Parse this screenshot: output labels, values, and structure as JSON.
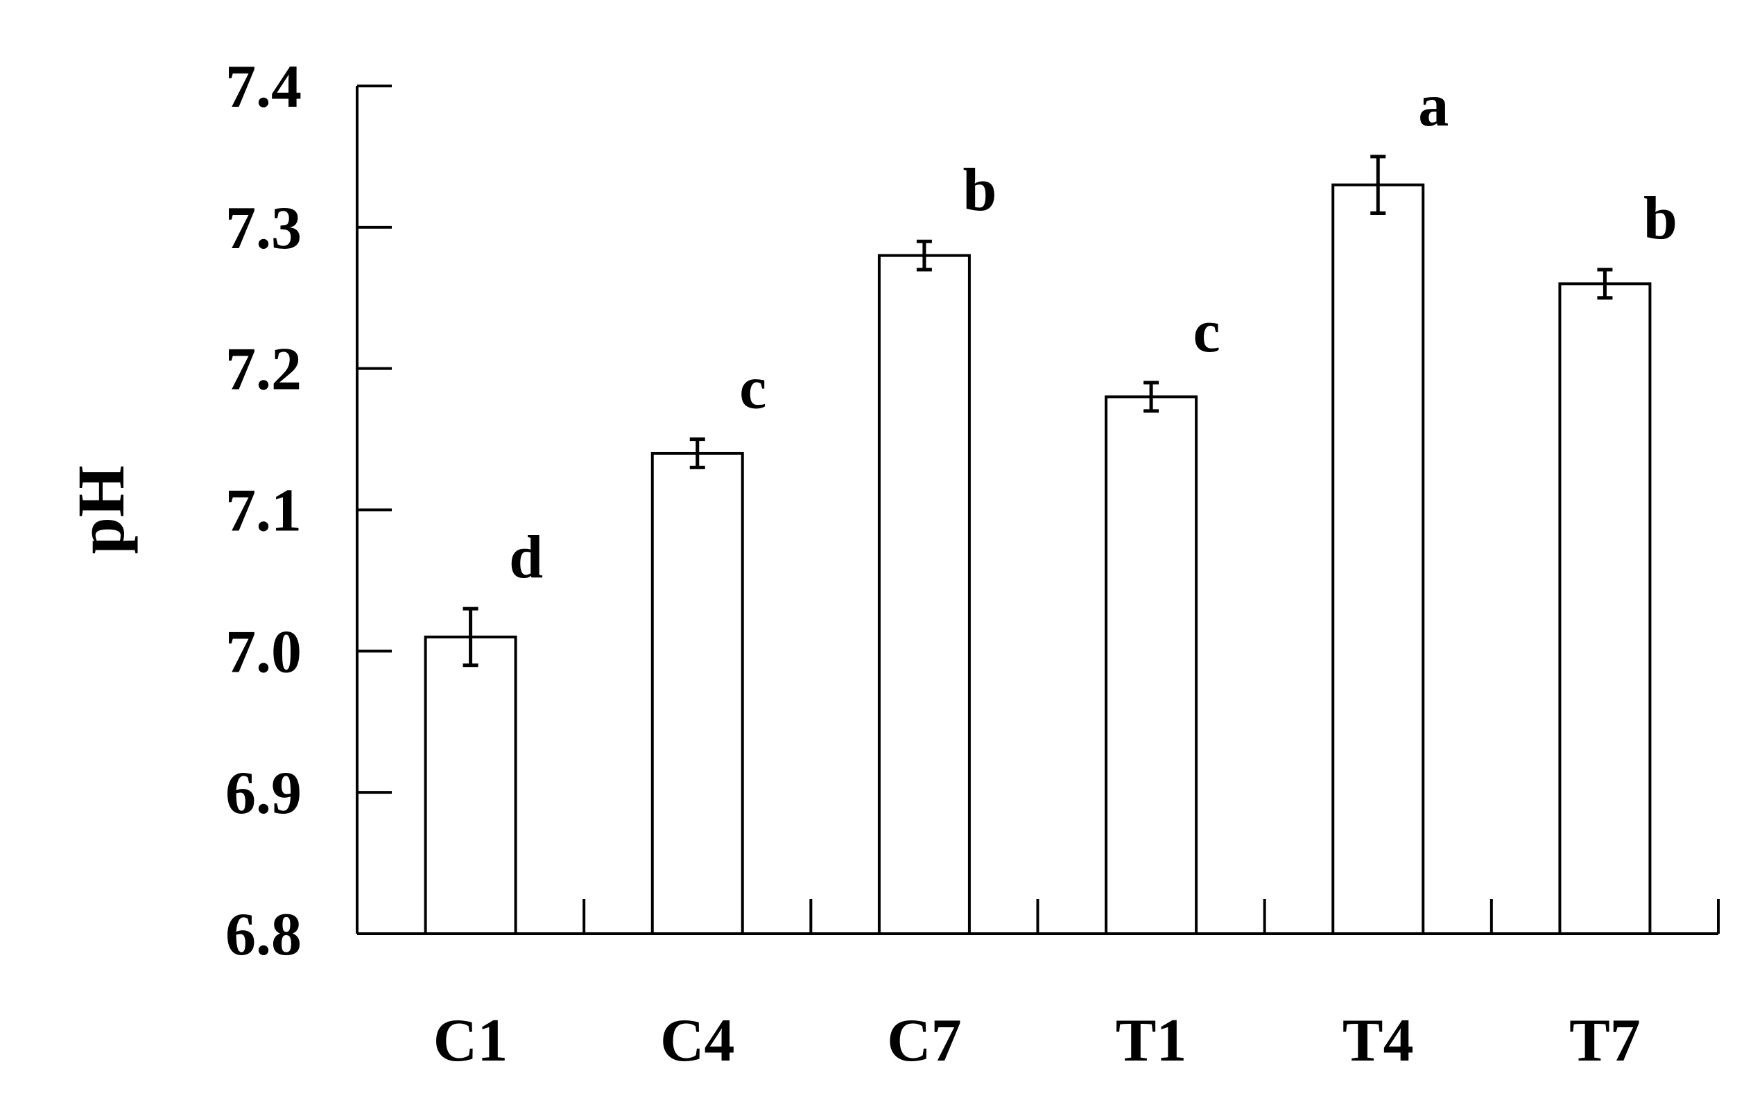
{
  "chart_data": {
    "type": "bar",
    "categories": [
      "C1",
      "C4",
      "C7",
      "T1",
      "T4",
      "T7"
    ],
    "values": [
      7.01,
      7.14,
      7.28,
      7.18,
      7.33,
      7.26
    ],
    "errors": [
      0.02,
      0.01,
      0.01,
      0.01,
      0.02,
      0.01
    ],
    "significance": [
      "d",
      "c",
      "b",
      "c",
      "a",
      "b"
    ],
    "title": "",
    "xlabel": "",
    "ylabel": "pH",
    "ylim": [
      6.8,
      7.4
    ],
    "yticks": [
      "6.8",
      "6.9",
      "7.0",
      "7.1",
      "7.2",
      "7.3",
      "7.4"
    ],
    "grid": false,
    "bar_fill": "#ffffff",
    "bar_stroke": "#000000"
  }
}
